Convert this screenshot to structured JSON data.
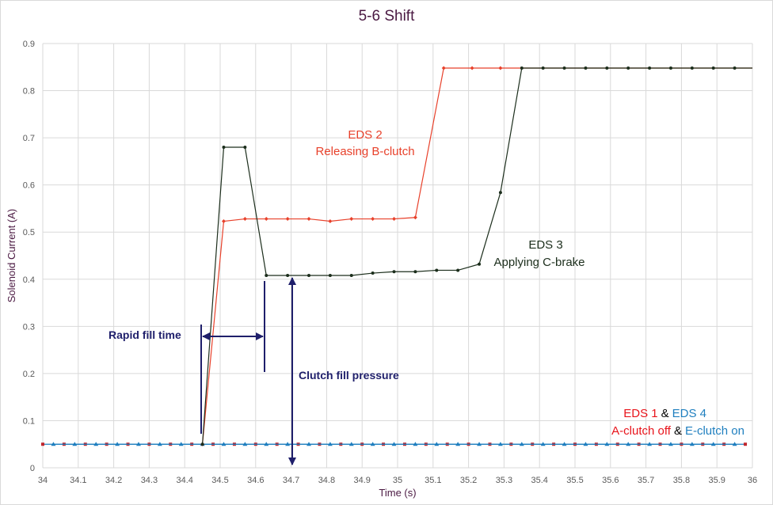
{
  "chart_data": {
    "type": "line",
    "title": "5-6 Shift",
    "x_label": "Time (s)",
    "y_label": "Solenoid Current (A)",
    "xlim": [
      34,
      36
    ],
    "xticks": [
      34,
      34.1,
      34.2,
      34.3,
      34.4,
      34.5,
      34.6,
      34.7,
      34.8,
      34.9,
      35,
      35.1,
      35.2,
      35.3,
      35.4,
      35.5,
      35.6,
      35.7,
      35.8,
      35.9,
      36
    ],
    "ylim": [
      0,
      0.9
    ],
    "yticks": [
      0,
      0.1,
      0.2,
      0.3,
      0.4,
      0.5,
      0.6,
      0.7,
      0.8,
      0.9
    ],
    "grid": true,
    "series": [
      {
        "name": "EDS 1",
        "color": "#c0262d",
        "marker": "square",
        "x": [
          34.0,
          34.06,
          34.12,
          34.18,
          34.24,
          34.3,
          34.36,
          34.42,
          34.48,
          34.54,
          34.6,
          34.66,
          34.72,
          34.78,
          34.84,
          34.9,
          34.96,
          35.02,
          35.08,
          35.14,
          35.2,
          35.26,
          35.32,
          35.38,
          35.44,
          35.5,
          35.56,
          35.62,
          35.68,
          35.74,
          35.8,
          35.86,
          35.92,
          35.98
        ],
        "values": [
          0.05,
          0.05,
          0.05,
          0.05,
          0.05,
          0.05,
          0.05,
          0.05,
          0.05,
          0.05,
          0.05,
          0.05,
          0.05,
          0.05,
          0.05,
          0.05,
          0.05,
          0.05,
          0.05,
          0.05,
          0.05,
          0.05,
          0.05,
          0.05,
          0.05,
          0.05,
          0.05,
          0.05,
          0.05,
          0.05,
          0.05,
          0.05,
          0.05,
          0.05
        ]
      },
      {
        "name": "EDS 4",
        "color": "#1f7fbf",
        "marker": "triangle",
        "x": [
          34.03,
          34.09,
          34.15,
          34.21,
          34.27,
          34.33,
          34.39,
          34.45,
          34.51,
          34.57,
          34.63,
          34.69,
          34.75,
          34.81,
          34.87,
          34.93,
          34.99,
          35.05,
          35.11,
          35.17,
          35.23,
          35.29,
          35.35,
          35.41,
          35.47,
          35.53,
          35.59,
          35.65,
          35.71,
          35.77,
          35.83,
          35.89,
          35.95
        ],
        "values": [
          0.05,
          0.05,
          0.05,
          0.05,
          0.05,
          0.05,
          0.05,
          0.05,
          0.05,
          0.05,
          0.05,
          0.05,
          0.05,
          0.05,
          0.05,
          0.05,
          0.05,
          0.05,
          0.05,
          0.05,
          0.05,
          0.05,
          0.05,
          0.05,
          0.05,
          0.05,
          0.05,
          0.05,
          0.05,
          0.05,
          0.05,
          0.05,
          0.05
        ]
      },
      {
        "name": "EDS 2",
        "color": "#e8412b",
        "marker": "diamond",
        "x": [
          34.45,
          34.51,
          34.57,
          34.63,
          34.69,
          34.75,
          34.81,
          34.87,
          34.93,
          34.99,
          35.05,
          35.13,
          35.21,
          35.29,
          36
        ],
        "values": [
          0.05,
          0.523,
          0.528,
          0.528,
          0.528,
          0.528,
          0.523,
          0.528,
          0.528,
          0.528,
          0.531,
          0.848,
          0.848,
          0.848,
          0.848
        ]
      },
      {
        "name": "EDS 3",
        "color": "#1c2e1c",
        "marker": "circle",
        "x": [
          34.45,
          34.51,
          34.57,
          34.63,
          34.69,
          34.75,
          34.81,
          34.87,
          34.93,
          34.99,
          35.05,
          35.11,
          35.17,
          35.23,
          35.29,
          35.35,
          35.41,
          35.47,
          35.53,
          35.59,
          35.65,
          35.71,
          35.77,
          35.83,
          35.89,
          35.95,
          36
        ],
        "values": [
          0.05,
          0.68,
          0.68,
          0.408,
          0.408,
          0.408,
          0.408,
          0.408,
          0.413,
          0.416,
          0.416,
          0.419,
          0.419,
          0.432,
          0.584,
          0.848,
          0.848,
          0.848,
          0.848,
          0.848,
          0.848,
          0.848,
          0.848,
          0.848,
          0.848,
          0.848,
          0.848
        ]
      }
    ],
    "annotations": {
      "eds2_desc": "Releasing B-clutch",
      "eds3_desc": "Applying C-brake",
      "rapid_fill": "Rapid fill time",
      "clutch_fill": "Clutch fill pressure",
      "and": "&",
      "a_clutch": "A-clutch off",
      "e_clutch": "E-clutch on"
    }
  }
}
